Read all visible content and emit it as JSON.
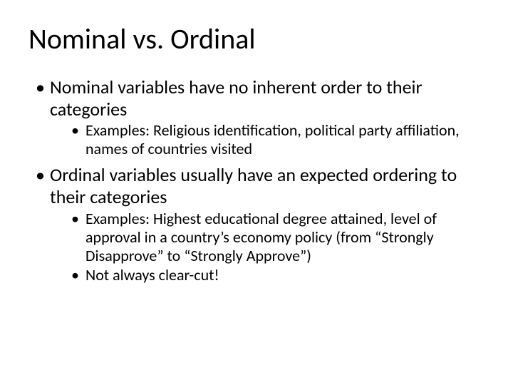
{
  "slide": {
    "title": "Nominal vs. Ordinal",
    "background_color": "#ffffff",
    "text_color": "#000000",
    "title_fontsize": 40,
    "level1_fontsize": 26,
    "level2_fontsize": 22,
    "font_family": "Calibri",
    "bullets": [
      {
        "text": "Nominal variables have no inherent order to their categories",
        "children": [
          {
            "text": "Examples: Religious identification, political party affiliation, names of countries visited"
          }
        ]
      },
      {
        "text": "Ordinal variables usually have an expected ordering to their categories",
        "children": [
          {
            "text": "Examples: Highest educational degree attained, level of approval in a country’s economy policy (from “Strongly Disapprove” to “Strongly Approve”)"
          },
          {
            "text": "Not always clear-cut!"
          }
        ]
      }
    ]
  }
}
